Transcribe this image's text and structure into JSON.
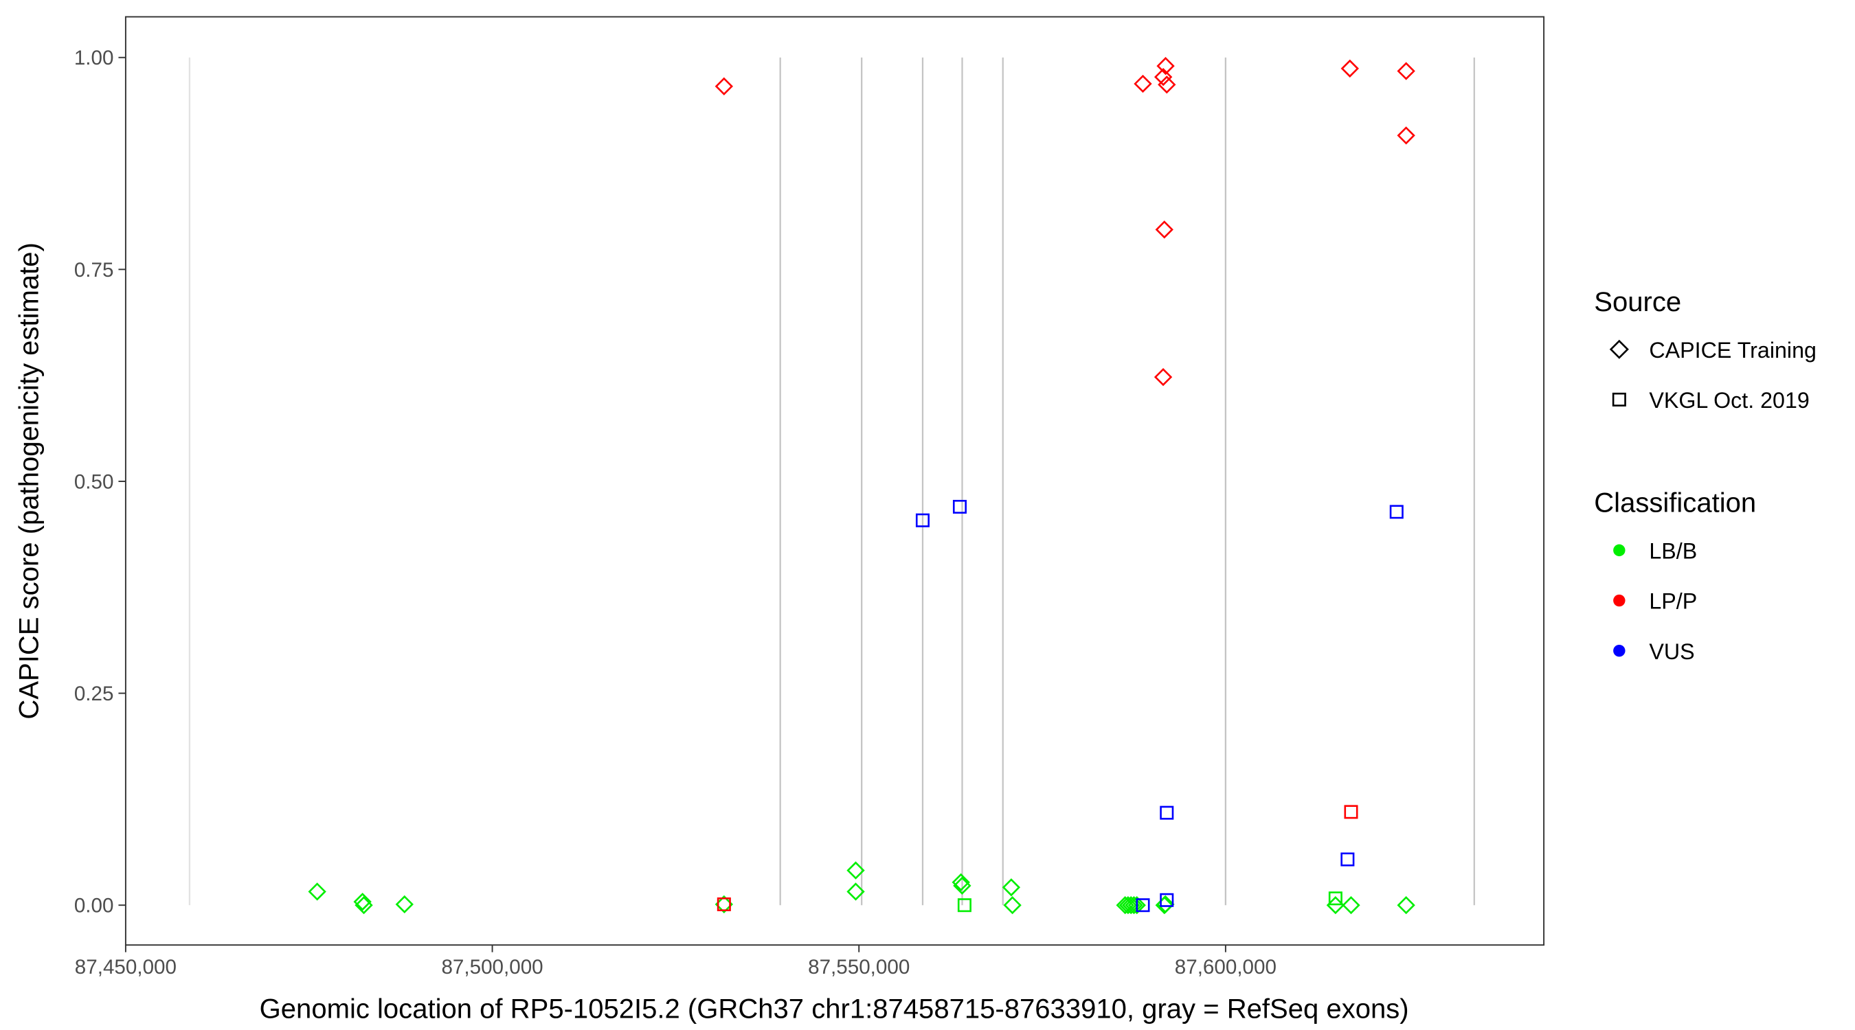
{
  "chart_data": {
    "type": "scatter",
    "title": "",
    "xlabel": "Genomic location of RP5-1052I5.2 (GRCh37 chr1:87458715-87633910, gray = RefSeq exons)",
    "ylabel": "CAPICE score (pathogenicity estimate)",
    "xlim": [
      87450000,
      87643400
    ],
    "ylim": [
      -0.047,
      1.048
    ],
    "xticks": [
      87450000,
      87500000,
      87550000,
      87600000
    ],
    "xtick_labels": [
      "87,450,000",
      "87,500,000",
      "87,550,000",
      "87,600,000"
    ],
    "yticks": [
      0,
      0.25,
      0.5,
      0.75,
      1.0
    ],
    "ytick_labels": [
      "0.00",
      "0.25",
      "0.50",
      "0.75",
      "1.00"
    ],
    "grid": false,
    "exon_lines": [
      87458715,
      87539270,
      87550370,
      87558690,
      87564080,
      87569630,
      87600000,
      87633910
    ],
    "legend": {
      "placement": "right",
      "source_title": "Source",
      "source_entries": [
        {
          "label": "CAPICE Training",
          "shape": "diamond"
        },
        {
          "label": "VKGL Oct. 2019",
          "shape": "square"
        }
      ],
      "class_title": "Classification",
      "class_entries": [
        {
          "label": "LB/B",
          "color": "#00ee00"
        },
        {
          "label": "LP/P",
          "color": "#ff0000"
        },
        {
          "label": "VUS",
          "color": "#0000ff"
        }
      ]
    },
    "points": [
      {
        "x": 87476120,
        "y": 0.016,
        "source": "CAPICE Training",
        "class": "LB/B"
      },
      {
        "x": 87482300,
        "y": 0.004,
        "source": "CAPICE Training",
        "class": "LB/B"
      },
      {
        "x": 87482480,
        "y": 0.0,
        "source": "CAPICE Training",
        "class": "LB/B"
      },
      {
        "x": 87488030,
        "y": 0.001,
        "source": "CAPICE Training",
        "class": "LB/B"
      },
      {
        "x": 87531600,
        "y": 0.001,
        "source": "CAPICE Training",
        "class": "LB/B"
      },
      {
        "x": 87549560,
        "y": 0.041,
        "source": "CAPICE Training",
        "class": "LB/B"
      },
      {
        "x": 87549560,
        "y": 0.016,
        "source": "CAPICE Training",
        "class": "LB/B"
      },
      {
        "x": 87563910,
        "y": 0.027,
        "source": "CAPICE Training",
        "class": "LB/B"
      },
      {
        "x": 87564070,
        "y": 0.023,
        "source": "CAPICE Training",
        "class": "LB/B"
      },
      {
        "x": 87570770,
        "y": 0.021,
        "source": "CAPICE Training",
        "class": "LB/B"
      },
      {
        "x": 87570930,
        "y": 0.0,
        "source": "CAPICE Training",
        "class": "LB/B"
      },
      {
        "x": 87586300,
        "y": 0.0,
        "source": "CAPICE Training",
        "class": "LB/B"
      },
      {
        "x": 87586700,
        "y": 0.0,
        "source": "CAPICE Training",
        "class": "LB/B"
      },
      {
        "x": 87587100,
        "y": 0.0,
        "source": "CAPICE Training",
        "class": "LB/B"
      },
      {
        "x": 87587500,
        "y": 0.0,
        "source": "CAPICE Training",
        "class": "LB/B"
      },
      {
        "x": 87587900,
        "y": 0.0,
        "source": "CAPICE Training",
        "class": "LB/B"
      },
      {
        "x": 87591650,
        "y": 0.0,
        "source": "CAPICE Training",
        "class": "LB/B"
      },
      {
        "x": 87591800,
        "y": 0.001,
        "source": "CAPICE Training",
        "class": "LB/B"
      },
      {
        "x": 87614990,
        "y": 0.0,
        "source": "CAPICE Training",
        "class": "LB/B"
      },
      {
        "x": 87617110,
        "y": 0.0,
        "source": "CAPICE Training",
        "class": "LB/B"
      },
      {
        "x": 87624620,
        "y": 0.0,
        "source": "CAPICE Training",
        "class": "LB/B"
      },
      {
        "x": 87531600,
        "y": 0.966,
        "source": "CAPICE Training",
        "class": "LP/P"
      },
      {
        "x": 87588720,
        "y": 0.969,
        "source": "CAPICE Training",
        "class": "LP/P"
      },
      {
        "x": 87591820,
        "y": 0.99,
        "source": "CAPICE Training",
        "class": "LP/P"
      },
      {
        "x": 87591500,
        "y": 0.977,
        "source": "CAPICE Training",
        "class": "LP/P"
      },
      {
        "x": 87591980,
        "y": 0.968,
        "source": "CAPICE Training",
        "class": "LP/P"
      },
      {
        "x": 87591650,
        "y": 0.797,
        "source": "CAPICE Training",
        "class": "LP/P"
      },
      {
        "x": 87591490,
        "y": 0.623,
        "source": "CAPICE Training",
        "class": "LP/P"
      },
      {
        "x": 87616950,
        "y": 0.987,
        "source": "CAPICE Training",
        "class": "LP/P"
      },
      {
        "x": 87624620,
        "y": 0.984,
        "source": "CAPICE Training",
        "class": "LP/P"
      },
      {
        "x": 87624620,
        "y": 0.908,
        "source": "CAPICE Training",
        "class": "LP/P"
      },
      {
        "x": 87558690,
        "y": 0.454,
        "source": "VKGL Oct. 2019",
        "class": "VUS"
      },
      {
        "x": 87563750,
        "y": 0.47,
        "source": "VKGL Oct. 2019",
        "class": "VUS"
      },
      {
        "x": 87623320,
        "y": 0.464,
        "source": "VKGL Oct. 2019",
        "class": "VUS"
      },
      {
        "x": 87591980,
        "y": 0.109,
        "source": "VKGL Oct. 2019",
        "class": "VUS"
      },
      {
        "x": 87616630,
        "y": 0.054,
        "source": "VKGL Oct. 2019",
        "class": "VUS"
      },
      {
        "x": 87591980,
        "y": 0.006,
        "source": "VKGL Oct. 2019",
        "class": "VUS"
      },
      {
        "x": 87588720,
        "y": 0.0,
        "source": "VKGL Oct. 2019",
        "class": "VUS"
      },
      {
        "x": 87531600,
        "y": 0.001,
        "source": "VKGL Oct. 2019",
        "class": "LP/P"
      },
      {
        "x": 87617110,
        "y": 0.11,
        "source": "VKGL Oct. 2019",
        "class": "LP/P"
      },
      {
        "x": 87564400,
        "y": 0.0,
        "source": "VKGL Oct. 2019",
        "class": "LB/B"
      },
      {
        "x": 87614990,
        "y": 0.008,
        "source": "VKGL Oct. 2019",
        "class": "LB/B"
      }
    ]
  }
}
